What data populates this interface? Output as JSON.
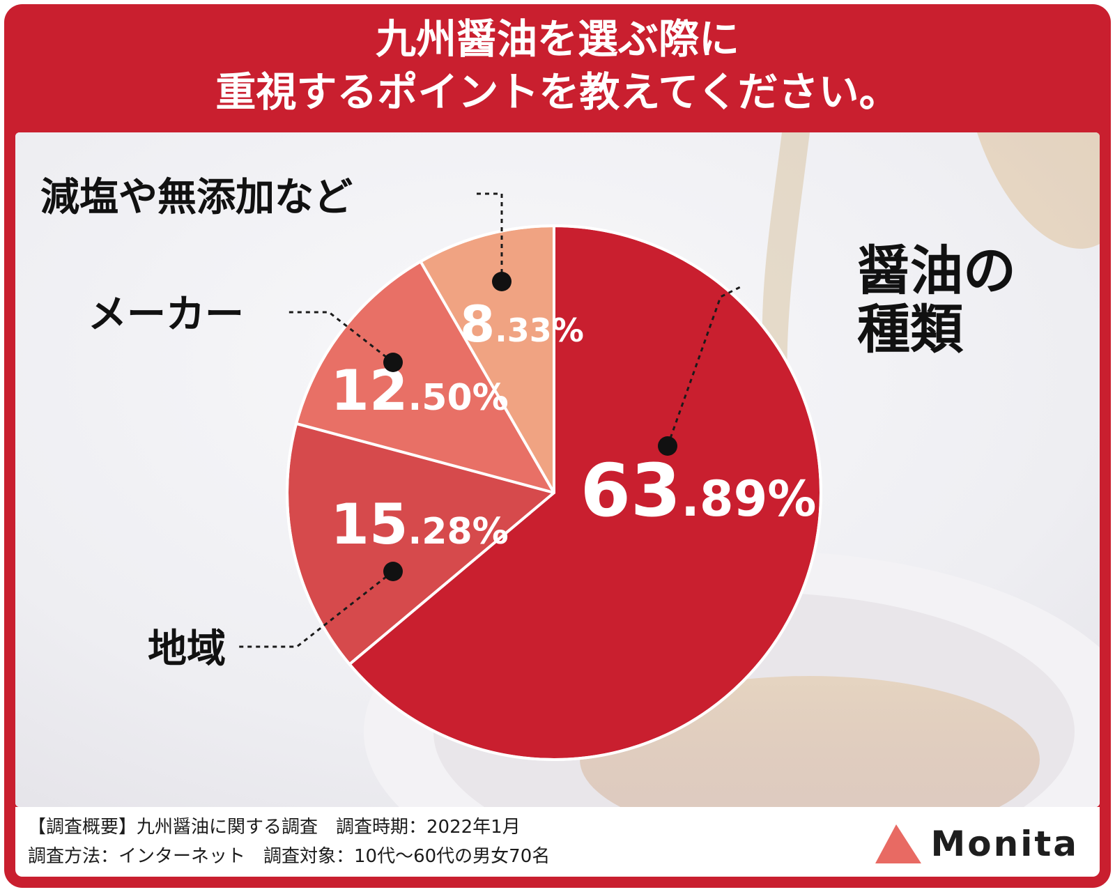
{
  "title_lines": [
    "九州醤油を選ぶ際に",
    "重視するポイントを教えてください。"
  ],
  "footer": {
    "line1": "【調査概要】九州醤油に関する調査　調査時期：2022年1月",
    "line2": "調査方法：インターネット　調査対象：10代～60代の男女70名"
  },
  "logo": {
    "text": "Monita",
    "icon": "triangle-logo-icon",
    "color": "#e86a63"
  },
  "colors": {
    "frame": "#c91f2f"
  },
  "chart_data": {
    "type": "pie",
    "unit": "%",
    "slices": [
      {
        "label": "醤油の種類",
        "label_lines": [
          "醤油の",
          "種類"
        ],
        "value": 63.89,
        "int": "63",
        "dec": ".89%",
        "color": "#c91f2f"
      },
      {
        "label": "地域",
        "label_lines": [
          "地域"
        ],
        "value": 15.28,
        "int": "15",
        "dec": ".28%",
        "color": "#d64a4c"
      },
      {
        "label": "メーカー",
        "label_lines": [
          "メーカー"
        ],
        "value": 12.5,
        "int": "12",
        "dec": ".50%",
        "color": "#e87066"
      },
      {
        "label": "減塩や無添加など",
        "label_lines": [
          "減塩や無添加など"
        ],
        "value": 8.33,
        "int": "8",
        "dec": ".33%",
        "color": "#f0a382"
      }
    ]
  }
}
